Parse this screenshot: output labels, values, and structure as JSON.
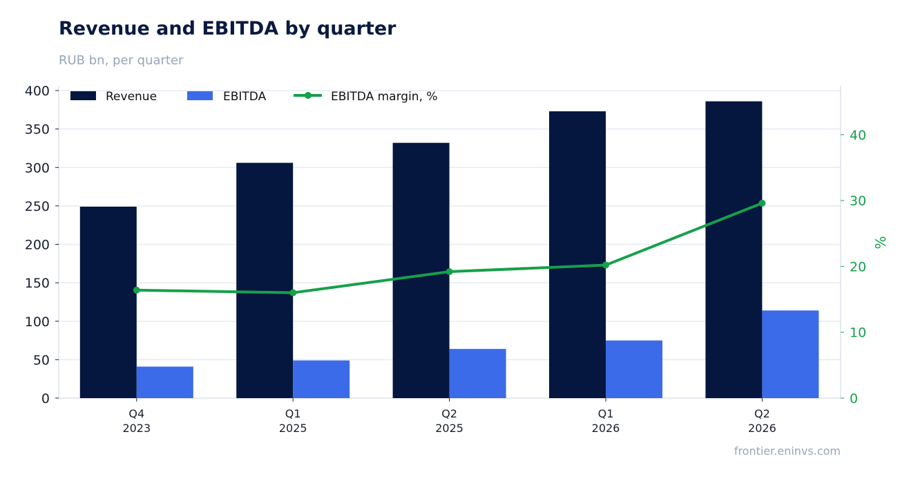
{
  "header": {
    "title": "Revenue and EBITDA by quarter",
    "subtitle": "RUB bn, per quarter"
  },
  "footer": {
    "source": "frontier.eninvs.com"
  },
  "chart_data": {
    "type": "bar",
    "title": "Revenue and EBITDA by quarter",
    "subtitle": "RUB bn, per quarter",
    "categories": [
      [
        "Q4",
        "2023"
      ],
      [
        "Q1",
        "2025"
      ],
      [
        "Q2",
        "2025"
      ],
      [
        "Q1",
        "2026"
      ],
      [
        "Q2",
        "2026"
      ]
    ],
    "series": [
      {
        "name": "Revenue",
        "type": "bar",
        "axis": "left",
        "color": "#05163f",
        "values": [
          249,
          306,
          332,
          373,
          386
        ]
      },
      {
        "name": "EBITDA",
        "type": "bar",
        "axis": "left",
        "color": "#3b6be8",
        "values": [
          41,
          49,
          64,
          75,
          114
        ]
      },
      {
        "name": "EBITDA margin, %",
        "type": "line",
        "axis": "right",
        "color": "#16a04a",
        "values": [
          16.4,
          16.0,
          19.2,
          20.2,
          29.6
        ]
      }
    ],
    "y_left": {
      "min": 0,
      "max": 400,
      "ticks": [
        0,
        50,
        100,
        150,
        200,
        250,
        300,
        350,
        400
      ]
    },
    "y_right": {
      "label": "%",
      "min": 0,
      "max": 46.7,
      "ticks": [
        0,
        10,
        20,
        30,
        40
      ]
    },
    "grid": true,
    "legend_position": "top-left"
  }
}
